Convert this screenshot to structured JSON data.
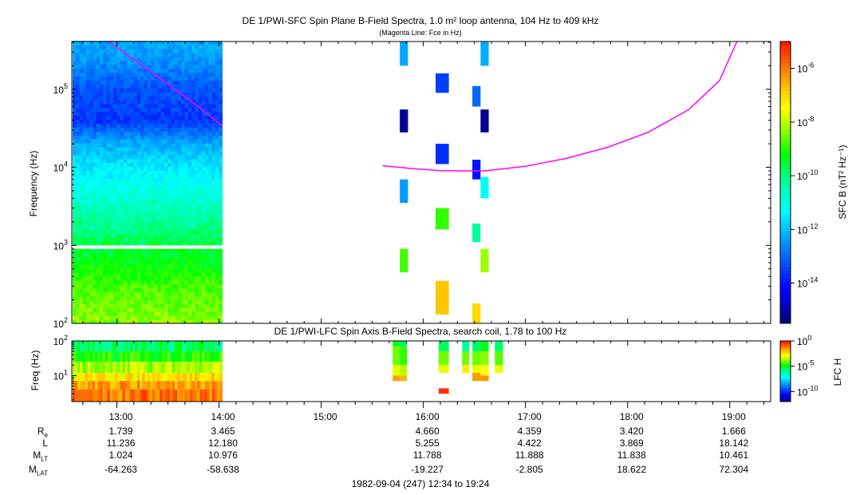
{
  "chart_data": {
    "type": "heatmap",
    "title": "DE 1/PWI-SFC  Spin Plane B-Field Spectra, 1.0 m² loop antenna, 104 Hz to 409 kHz",
    "subtitle": "(Magenta Line: Fce in Hz)",
    "ylabel": "Frequency (Hz)",
    "yticks": [
      "10^2",
      "10^3",
      "10^4",
      "10^5"
    ],
    "ylim_hz": [
      100,
      409000
    ],
    "time_range_hours": [
      12.5667,
      19.4
    ],
    "colorbar": {
      "label": "SFC B (nT² Hz⁻¹)",
      "ticks": [
        "10^-6",
        "10^-8",
        "10^-10",
        "10^-12",
        "10^-14"
      ],
      "log_range": [
        -15.5,
        -5
      ]
    },
    "continuous_segments": [
      {
        "t0": 12.5667,
        "t1": 14.03,
        "profile_log10f": [
          2,
          2.5,
          3,
          3.3,
          3.6,
          4,
          4.3,
          4.6,
          5,
          5.3,
          5.62
        ],
        "profile_log10p": [
          -8.3,
          -8.8,
          -9.6,
          -10.2,
          -10.8,
          -11.5,
          -12.2,
          -13.6,
          -13.3,
          -12.6,
          -12.2
        ]
      }
    ],
    "bursts": [
      {
        "t0": 15.77,
        "t1": 15.85,
        "f0": 200000,
        "f1": 409000,
        "v": -12.3
      },
      {
        "t0": 15.77,
        "t1": 15.85,
        "f0": 28000,
        "f1": 55000,
        "v": -15.2
      },
      {
        "t0": 15.77,
        "t1": 15.85,
        "f0": 3500,
        "f1": 7000,
        "v": -12.4
      },
      {
        "t0": 15.77,
        "t1": 15.85,
        "f0": 450,
        "f1": 900,
        "v": -8.8
      },
      {
        "t0": 16.12,
        "t1": 16.25,
        "f0": 90000,
        "f1": 160000,
        "v": -13.5
      },
      {
        "t0": 16.12,
        "t1": 16.25,
        "f0": 11000,
        "f1": 20000,
        "v": -13.7
      },
      {
        "t0": 16.12,
        "t1": 16.25,
        "f0": 1600,
        "f1": 3000,
        "v": -8.9
      },
      {
        "t0": 16.12,
        "t1": 16.25,
        "f0": 130,
        "f1": 350,
        "v": -6.8
      },
      {
        "t0": 16.48,
        "t1": 16.56,
        "f0": 60000,
        "f1": 110000,
        "v": -13.0
      },
      {
        "t0": 16.48,
        "t1": 16.56,
        "f0": 7000,
        "f1": 12500,
        "v": -14.0
      },
      {
        "t0": 16.48,
        "t1": 16.56,
        "f0": 1100,
        "f1": 1900,
        "v": -10.2
      },
      {
        "t0": 16.48,
        "t1": 16.56,
        "f0": 100,
        "f1": 180,
        "v": -7.0
      },
      {
        "t0": 16.56,
        "t1": 16.64,
        "f0": 200000,
        "f1": 409000,
        "v": -12.2
      },
      {
        "t0": 16.56,
        "t1": 16.64,
        "f0": 28000,
        "f1": 55000,
        "v": -15.2
      },
      {
        "t0": 16.56,
        "t1": 16.64,
        "f0": 4000,
        "f1": 7500,
        "v": -11.2
      },
      {
        "t0": 16.56,
        "t1": 16.64,
        "f0": 450,
        "f1": 900,
        "v": -8.2
      }
    ],
    "fce_line": {
      "color": "#ff00ff",
      "segments": [
        [
          [
            12.92,
            409000
          ],
          [
            13.3,
            180000
          ],
          [
            13.7,
            75000
          ],
          [
            14.03,
            34000
          ]
        ],
        [
          [
            15.6,
            10500
          ],
          [
            15.9,
            9600
          ],
          [
            16.2,
            9000
          ],
          [
            16.6,
            9000
          ],
          [
            17.0,
            10300
          ],
          [
            17.4,
            13000
          ],
          [
            17.8,
            18000
          ],
          [
            18.2,
            28000
          ],
          [
            18.6,
            55000
          ],
          [
            18.9,
            130000
          ],
          [
            19.07,
            409000
          ]
        ]
      ]
    },
    "lower_panel": {
      "title": "DE 1/PWI-LFC  Spin Axis B-Field Spectra, search coil, 1.78 to 100 Hz",
      "ylabel": "Freq (Hz)",
      "yticks": [
        "10^1",
        "10^2"
      ],
      "ylim_hz": [
        1.78,
        100
      ],
      "colorbar": {
        "label": "LFC H",
        "ticks": [
          "10^0",
          "10^-5",
          "10^-10"
        ],
        "log_range": [
          -12,
          0
        ]
      },
      "continuous_segments": [
        {
          "t0": 12.5667,
          "t1": 14.03,
          "bands": [
            [
              50,
              100,
              -5.5
            ],
            [
              25,
              50,
              -4.6
            ],
            [
              12,
              25,
              -3.6
            ],
            [
              7,
              12,
              -2.5
            ],
            [
              4,
              7,
              -1.6
            ],
            [
              1.78,
              4,
              -1.1
            ]
          ]
        }
      ],
      "bursts": [
        {
          "t0": 15.7,
          "t1": 15.77,
          "bands": [
            [
              70,
              100,
              -5
            ],
            [
              20,
              70,
              -4
            ],
            [
              10,
              20,
              -3
            ],
            [
              7,
              10,
              -1.5
            ]
          ]
        },
        {
          "t0": 15.77,
          "t1": 15.84,
          "bands": [
            [
              70,
              100,
              -5.5
            ],
            [
              20,
              70,
              -4.5
            ],
            [
              10,
              20,
              -3.5
            ],
            [
              7,
              10,
              -1.8
            ]
          ]
        },
        {
          "t0": 16.15,
          "t1": 16.25,
          "bands": [
            [
              50,
              100,
              -5.5
            ],
            [
              20,
              50,
              -4
            ],
            [
              12,
              20,
              -3
            ]
          ]
        },
        {
          "t0": 16.15,
          "t1": 16.25,
          "bands": [
            [
              3,
              4.3,
              -0.3
            ]
          ]
        },
        {
          "t0": 16.38,
          "t1": 16.45,
          "bands": [
            [
              50,
              100,
              -6
            ],
            [
              20,
              50,
              -4
            ],
            [
              12,
              20,
              -2.5
            ]
          ]
        },
        {
          "t0": 16.48,
          "t1": 16.56,
          "bands": [
            [
              50,
              100,
              -5.5
            ],
            [
              20,
              50,
              -4
            ],
            [
              12,
              20,
              -3
            ],
            [
              7,
              12,
              -1.5
            ]
          ]
        },
        {
          "t0": 16.56,
          "t1": 16.64,
          "bands": [
            [
              50,
              100,
              -5
            ],
            [
              20,
              50,
              -3.8
            ],
            [
              10,
              20,
              -2.8
            ],
            [
              7,
              10,
              -1.4
            ]
          ]
        },
        {
          "t0": 16.7,
          "t1": 16.78,
          "bands": [
            [
              50,
              100,
              -5.5
            ],
            [
              20,
              50,
              -4.2
            ],
            [
              12,
              20,
              -3
            ]
          ]
        }
      ]
    },
    "xticks": [
      "13:00",
      "14:00",
      "15:00",
      "16:00",
      "17:00",
      "18:00",
      "19:00"
    ]
  },
  "ephemeris": {
    "row_labels": {
      "re": "R",
      "re_sub": "e",
      "l": "L",
      "mlt": "M",
      "mlt_sub": "LT",
      "mlat": "M",
      "mlat_sub": "LAT"
    },
    "columns": [
      {
        "time": "13:00",
        "re": "1.739",
        "l": "11.236",
        "mlt": "1.024",
        "mlat": "-64.263"
      },
      {
        "time": "14:00",
        "re": "3.465",
        "l": "12.180",
        "mlt": "10.976",
        "mlat": "-58.638"
      },
      {
        "time": "15:00",
        "re": "",
        "l": "",
        "mlt": "",
        "mlat": ""
      },
      {
        "time": "16:00",
        "re": "4.660",
        "l": "5.255",
        "mlt": "11.788",
        "mlat": "-19.227"
      },
      {
        "time": "17:00",
        "re": "4.359",
        "l": "4.422",
        "mlt": "11.888",
        "mlat": "-2.805"
      },
      {
        "time": "18:00",
        "re": "3.420",
        "l": "3.869",
        "mlt": "11.838",
        "mlat": "18.622"
      },
      {
        "time": "19:00",
        "re": "1.666",
        "l": "18.142",
        "mlt": "10.461",
        "mlat": "72.304"
      }
    ],
    "footer": "1982-09-04 (247) 12:34 to 19:24"
  }
}
